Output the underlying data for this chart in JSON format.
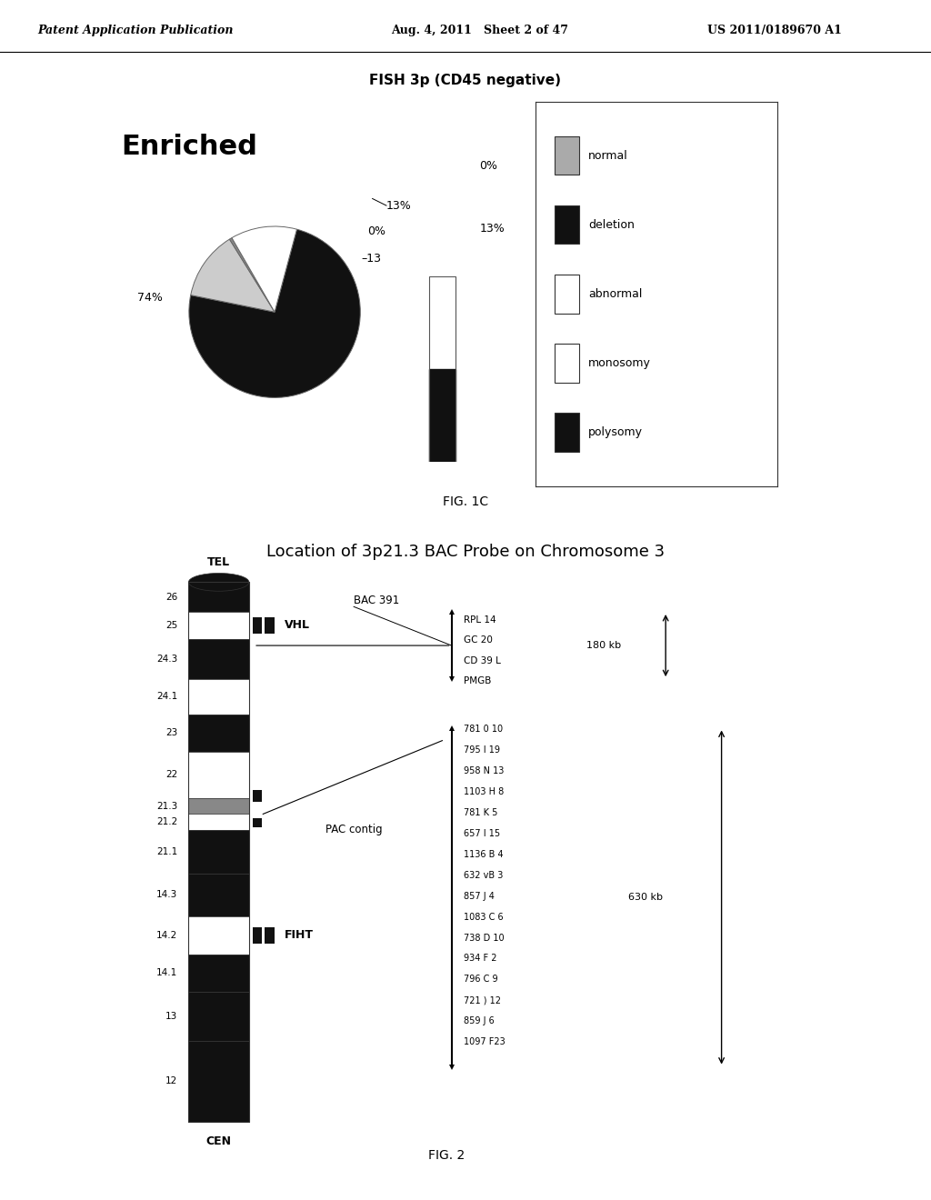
{
  "bg_color": "#ffffff",
  "header_left": "Patent Application Publication",
  "header_mid": "Aug. 4, 2011   Sheet 2 of 47",
  "header_right": "US 2011/0189670 A1",
  "fish_title": "FISH 3p (CD45 negative)",
  "enriched_label": "Enriched",
  "fig1c_label": "FIG. 1C",
  "fig2_title": "Location of 3p21.3 BAC Probe on Chromosome 3",
  "fig2_label": "FIG. 2",
  "legend_labels": [
    "normal",
    "deletion",
    "abnormal",
    "monosomy",
    "polysomy"
  ],
  "legend_colors": [
    "#aaaaaa",
    "#111111",
    "#ffffff",
    "#ffffff",
    "#111111"
  ],
  "tel_label": "TEL",
  "cen_label": "CEN",
  "vhl_label": "VHL",
  "fiht_label": "FIHT",
  "bac391_label": "BAC 391",
  "pac_contig_label": "PAC contig",
  "bac_genes": [
    "RPL 14",
    "GC 20",
    "CD 39 L",
    "PMGB"
  ],
  "bac_size": "180 kb",
  "pac_genes": [
    "781 0 10",
    "795 I 19",
    "958 N 13",
    "1103 H 8",
    "781 K 5",
    "657 I 15",
    "1136 B 4",
    "632 vB 3",
    "857 J 4",
    "1083 C 6",
    "738 D 10",
    "934 F 2",
    "796 C 9",
    "721 ) 12",
    "859 J 6",
    "1097 F23"
  ],
  "pac_size": "630 kb"
}
